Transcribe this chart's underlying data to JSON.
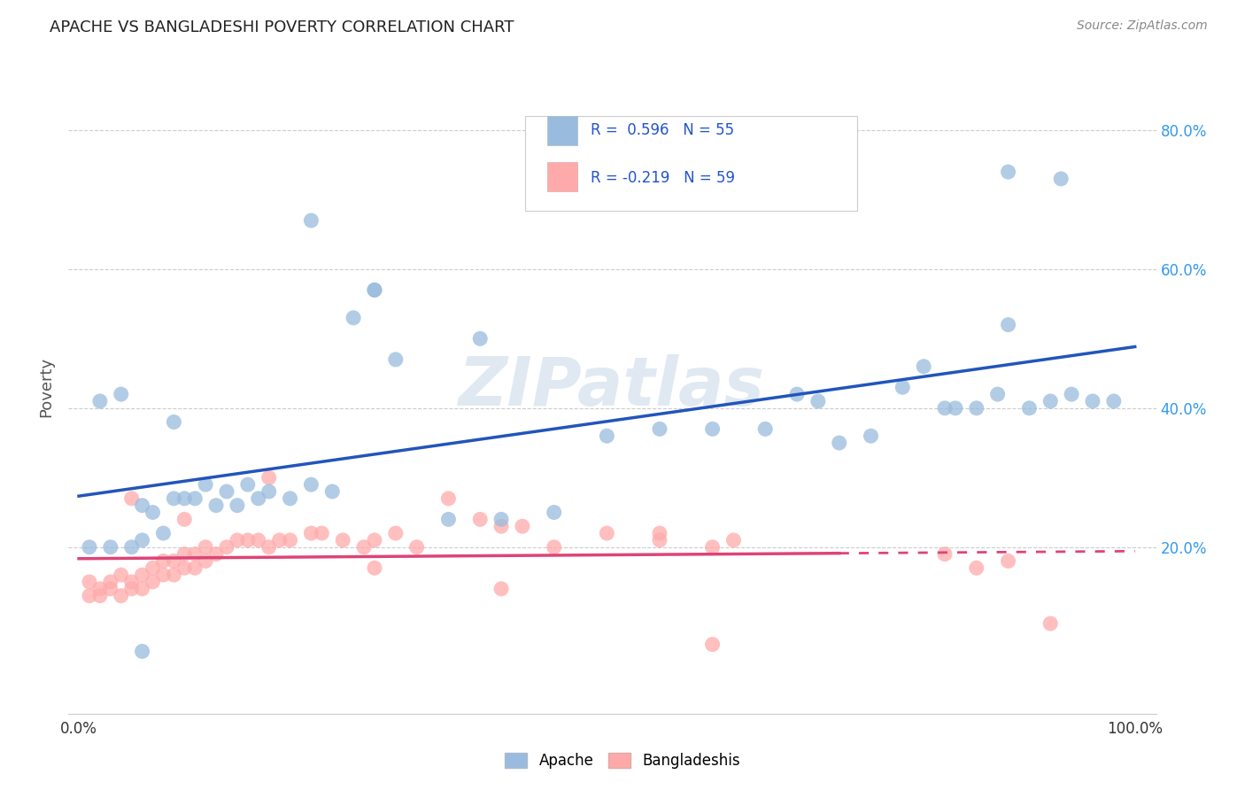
{
  "title": "APACHE VS BANGLADESHI POVERTY CORRELATION CHART",
  "source": "Source: ZipAtlas.com",
  "ylabel": "Poverty",
  "xlim": [
    0.0,
    1.0
  ],
  "ylim": [
    0.0,
    0.9
  ],
  "x_ticks": [
    0.0,
    0.2,
    0.4,
    0.6,
    0.8,
    1.0
  ],
  "x_tick_labels": [
    "0.0%",
    "",
    "",
    "",
    "",
    "100.0%"
  ],
  "y_ticks": [
    0.2,
    0.4,
    0.6,
    0.8
  ],
  "y_tick_labels": [
    "20.0%",
    "40.0%",
    "60.0%",
    "80.0%"
  ],
  "watermark": "ZIPatlas",
  "legend_r1": "R =  0.596   N = 55",
  "legend_r2": "R = -0.219   N = 59",
  "blue_scatter_color": "#99BBDD",
  "pink_scatter_color": "#FFAAAA",
  "blue_line_color": "#2255BB",
  "pink_line_color": "#DD4477",
  "apache_x": [
    0.01,
    0.02,
    0.03,
    0.04,
    0.05,
    0.06,
    0.06,
    0.07,
    0.08,
    0.09,
    0.1,
    0.11,
    0.12,
    0.13,
    0.14,
    0.15,
    0.16,
    0.17,
    0.18,
    0.2,
    0.22,
    0.24,
    0.26,
    0.28,
    0.3,
    0.35,
    0.4,
    0.45,
    0.5,
    0.55,
    0.6,
    0.65,
    0.68,
    0.7,
    0.72,
    0.75,
    0.78,
    0.8,
    0.82,
    0.83,
    0.85,
    0.87,
    0.88,
    0.9,
    0.92,
    0.94,
    0.96,
    0.98,
    0.06,
    0.09,
    0.22,
    0.28,
    0.38,
    0.88,
    0.93
  ],
  "apache_y": [
    0.2,
    0.41,
    0.2,
    0.42,
    0.2,
    0.21,
    0.26,
    0.25,
    0.22,
    0.27,
    0.27,
    0.27,
    0.29,
    0.26,
    0.28,
    0.26,
    0.29,
    0.27,
    0.28,
    0.27,
    0.29,
    0.28,
    0.53,
    0.57,
    0.47,
    0.24,
    0.24,
    0.25,
    0.36,
    0.37,
    0.37,
    0.37,
    0.42,
    0.41,
    0.35,
    0.36,
    0.43,
    0.46,
    0.4,
    0.4,
    0.4,
    0.42,
    0.52,
    0.4,
    0.41,
    0.42,
    0.41,
    0.41,
    0.05,
    0.38,
    0.67,
    0.57,
    0.5,
    0.74,
    0.73
  ],
  "bangladeshi_x": [
    0.01,
    0.01,
    0.02,
    0.02,
    0.03,
    0.03,
    0.04,
    0.04,
    0.05,
    0.05,
    0.06,
    0.06,
    0.07,
    0.07,
    0.08,
    0.08,
    0.09,
    0.09,
    0.1,
    0.1,
    0.11,
    0.11,
    0.12,
    0.12,
    0.13,
    0.14,
    0.15,
    0.16,
    0.17,
    0.18,
    0.19,
    0.2,
    0.22,
    0.23,
    0.25,
    0.27,
    0.28,
    0.3,
    0.32,
    0.35,
    0.38,
    0.4,
    0.42,
    0.45,
    0.5,
    0.55,
    0.6,
    0.62,
    0.82,
    0.85,
    0.05,
    0.1,
    0.18,
    0.28,
    0.4,
    0.55,
    0.6,
    0.88,
    0.92
  ],
  "bangladeshi_y": [
    0.15,
    0.13,
    0.14,
    0.13,
    0.15,
    0.14,
    0.13,
    0.16,
    0.14,
    0.15,
    0.14,
    0.16,
    0.15,
    0.17,
    0.16,
    0.18,
    0.16,
    0.18,
    0.17,
    0.19,
    0.17,
    0.19,
    0.18,
    0.2,
    0.19,
    0.2,
    0.21,
    0.21,
    0.21,
    0.2,
    0.21,
    0.21,
    0.22,
    0.22,
    0.21,
    0.2,
    0.21,
    0.22,
    0.2,
    0.27,
    0.24,
    0.23,
    0.23,
    0.2,
    0.22,
    0.22,
    0.2,
    0.21,
    0.19,
    0.17,
    0.27,
    0.24,
    0.3,
    0.17,
    0.14,
    0.21,
    0.06,
    0.18,
    0.09
  ]
}
